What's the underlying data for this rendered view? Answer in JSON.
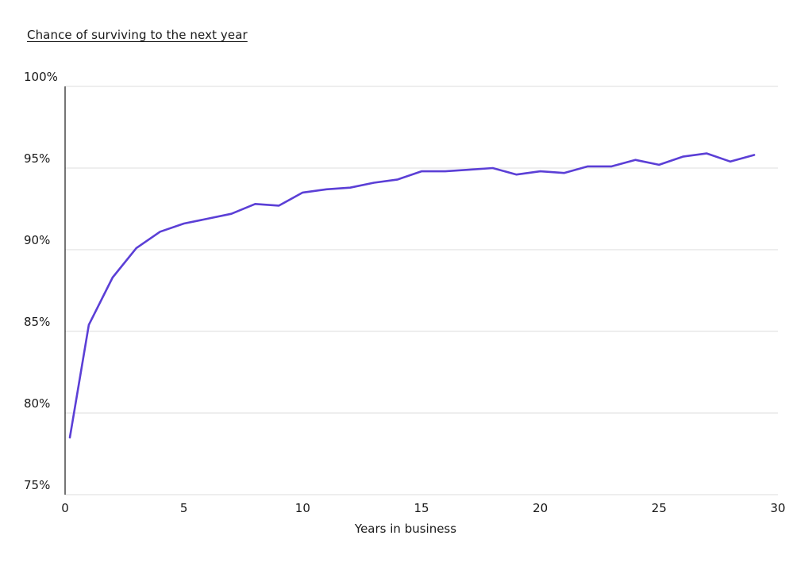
{
  "chart_data": {
    "type": "line",
    "title": "Chance of surviving to the next year",
    "xlabel": "Years in business",
    "ylabel": "",
    "xlim": [
      0,
      30
    ],
    "ylim": [
      75,
      100
    ],
    "x_ticks": [
      0,
      5,
      10,
      15,
      20,
      25,
      30
    ],
    "y_ticks": [
      75,
      80,
      85,
      90,
      95,
      100
    ],
    "y_tick_labels": [
      "75%",
      "80%",
      "85%",
      "90%",
      "95%",
      "100%"
    ],
    "grid": "horizontal",
    "legend": "none",
    "line_color": "#5b3fd6",
    "series": [
      {
        "x": [
          0.2,
          1,
          2,
          3,
          4,
          5,
          6,
          7,
          8,
          9,
          10,
          11,
          12,
          13,
          14,
          15,
          16,
          17,
          18,
          19,
          20,
          21,
          22,
          23,
          24,
          25,
          26,
          27,
          28,
          29
        ],
        "values": [
          78.5,
          85.4,
          88.3,
          90.1,
          91.1,
          91.6,
          91.9,
          92.2,
          92.8,
          92.7,
          93.5,
          93.7,
          93.8,
          94.1,
          94.3,
          94.8,
          94.8,
          94.9,
          95.0,
          94.6,
          94.8,
          94.7,
          95.1,
          95.1,
          95.5,
          95.2,
          95.7,
          95.9,
          95.4,
          95.8
        ]
      }
    ]
  }
}
